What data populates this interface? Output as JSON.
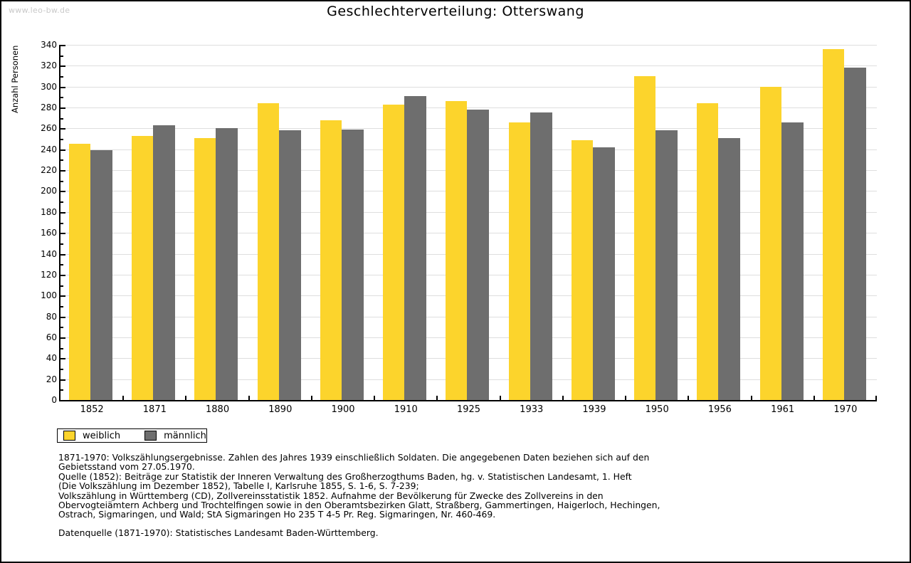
{
  "watermark": "www.leo-bw.de",
  "title": "Geschlechterverteilung: Otterswang",
  "chart_data": {
    "type": "bar",
    "title": "Geschlechterverteilung: Otterswang",
    "xlabel": "",
    "ylabel": "Anzahl Personen",
    "categories": [
      "1852",
      "1871",
      "1880",
      "1890",
      "1900",
      "1910",
      "1925",
      "1933",
      "1939",
      "1950",
      "1956",
      "1961",
      "1970"
    ],
    "series": [
      {
        "name": "weiblich",
        "color": "#FCD42C",
        "values": [
          245,
          253,
          251,
          284,
          268,
          283,
          286,
          266,
          249,
          310,
          284,
          300,
          336
        ]
      },
      {
        "name": "männlich",
        "color": "#6E6E6E",
        "values": [
          239,
          263,
          260,
          258,
          259,
          291,
          278,
          275,
          242,
          258,
          251,
          266,
          318
        ]
      }
    ],
    "ylim": [
      0,
      340
    ],
    "ytick_step": 20,
    "grid": true,
    "gridline_color": "#dedede",
    "legend_position": "bottom-left"
  },
  "footnotes": {
    "lines": [
      "1871-1970: Volkszählungsergebnisse. Zahlen des Jahres 1939 einschließlich Soldaten. Die angegebenen Daten beziehen sich auf den",
      "Gebietsstand vom 27.05.1970.",
      "Quelle (1852): Beiträge zur Statistik der Inneren Verwaltung des Großherzogthums Baden, hg. v. Statistischen Landesamt, 1. Heft",
      "(Die Volkszählung im Dezember 1852), Tabelle I, Karlsruhe 1855, S. 1-6, S. 7-239;",
      "Volkszählung in Württemberg (CD), Zollvereinsstatistik 1852. Aufnahme der Bevölkerung für Zwecke des Zollvereins in den",
      "Obervogteiämtern Achberg und Trochtelfingen sowie in den Oberamtsbezirken Glatt, Straßberg, Gammertingen, Haigerloch, Hechingen,",
      "Ostrach, Sigmaringen, und Wald; StA Sigmaringen Ho 235 T 4-5 Pr. Reg. Sigmaringen, Nr. 460-469."
    ],
    "datasource": "Datenquelle (1871-1970): Statistisches Landesamt Baden-Württemberg."
  }
}
